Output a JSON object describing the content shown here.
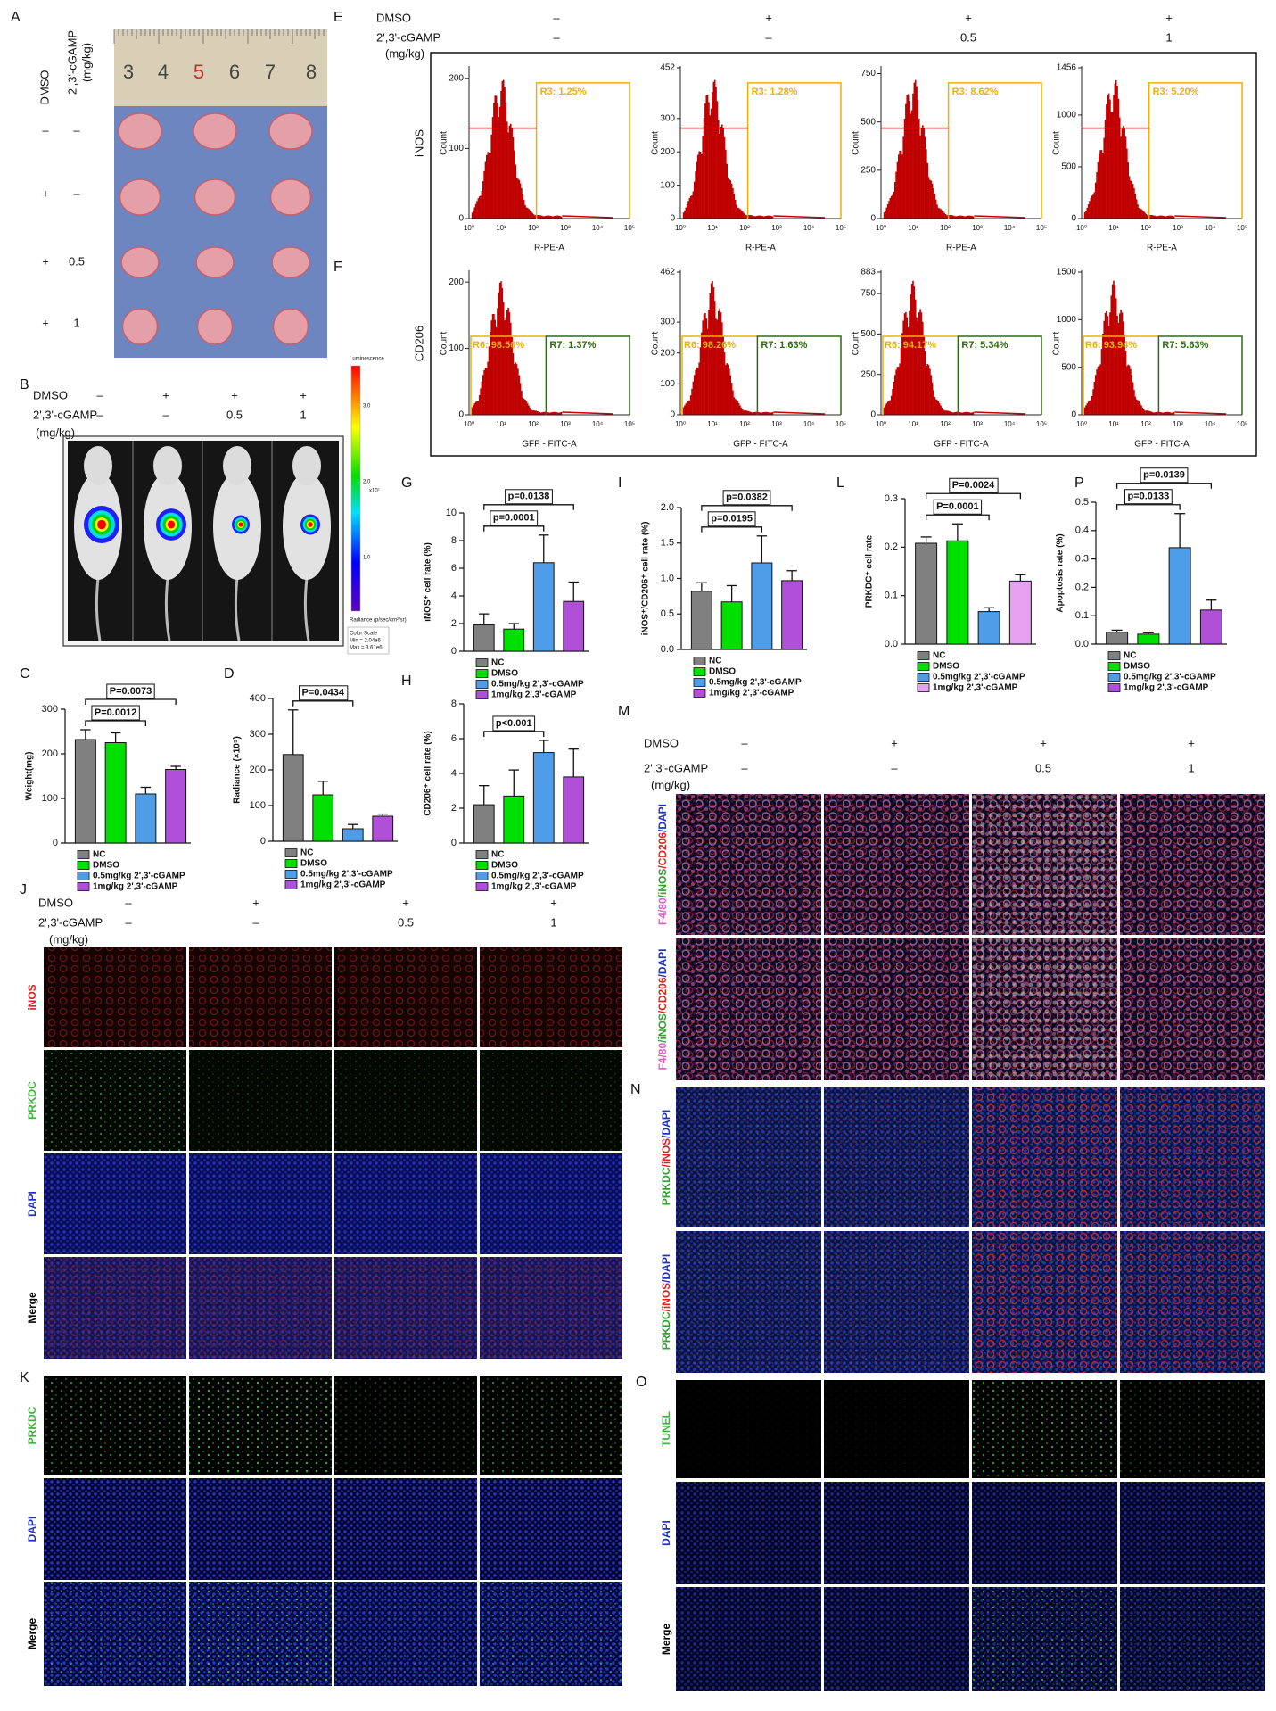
{
  "panel_letters": [
    "A",
    "B",
    "C",
    "D",
    "E",
    "F",
    "G",
    "H",
    "I",
    "J",
    "K",
    "L",
    "M",
    "N",
    "O",
    "P"
  ],
  "conditions": {
    "dmso_label": "DMSO",
    "cgamp_label": "2',3'-cGAMP",
    "cgamp_unit": "(mg/kg)",
    "dmso": [
      "–",
      "+",
      "+",
      "+"
    ],
    "cgamp": [
      "–",
      "–",
      "0.5",
      "1"
    ]
  },
  "panel_a": {
    "ruler": [
      3,
      4,
      5,
      6,
      7,
      8
    ]
  },
  "panel_b": {
    "color_scale": {
      "title": "Luminescence",
      "ticks": [
        "3.0",
        "2.0",
        "1.0"
      ],
      "exponent": "x10⁷",
      "unit": "Radiance (p/sec/cm²/sr)",
      "notes": [
        "Color Scale",
        "Min = 2.04e6",
        "Max = 3.61e6"
      ]
    }
  },
  "flow": {
    "y_label": "Count",
    "xticks": [
      "10⁰",
      "10¹",
      "10²",
      "10³",
      "10⁴",
      "10⁵"
    ],
    "rows": [
      {
        "label": "iNOS",
        "x_label": "R-PE-A",
        "panels": [
          {
            "ylim": [
              0,
              215
            ],
            "yticks": [
              0,
              100,
              200
            ],
            "gates": [
              "R3: 1.25%"
            ]
          },
          {
            "ylim": [
              0,
              452
            ],
            "yticks": [
              0,
              100,
              200,
              300,
              452
            ],
            "gates": [
              "R3: 1.28%"
            ]
          },
          {
            "ylim": [
              0,
              780
            ],
            "yticks": [
              0,
              250,
              500,
              750
            ],
            "gates": [
              "R3: 8.62%"
            ]
          },
          {
            "ylim": [
              0,
              1456
            ],
            "yticks": [
              0,
              500,
              1000,
              1456
            ],
            "gates": [
              "R3: 5.20%"
            ]
          }
        ]
      },
      {
        "label": "CD206",
        "x_label": "GFP - FITC-A",
        "panels": [
          {
            "ylim": [
              0,
              215
            ],
            "yticks": [
              0,
              100,
              200
            ],
            "gates": [
              "R6: 98.56%",
              "R7: 1.37%"
            ]
          },
          {
            "ylim": [
              0,
              462
            ],
            "yticks": [
              0,
              100,
              200,
              300,
              462
            ],
            "gates": [
              "R6: 98.26%",
              "R7: 1.63%"
            ]
          },
          {
            "ylim": [
              0,
              883
            ],
            "yticks": [
              0,
              250,
              500,
              750,
              883
            ],
            "gates": [
              "R6: 94.17%",
              "R7: 5.34%"
            ]
          },
          {
            "ylim": [
              0,
              1500
            ],
            "yticks": [
              0,
              500,
              1000,
              1500
            ],
            "gates": [
              "R6: 93.94%",
              "R7: 5.63%"
            ]
          }
        ]
      }
    ]
  },
  "chart_data": [
    {
      "type": "bar",
      "y_label": "Weight(mg)",
      "categories": [
        "NC",
        "DMSO",
        "0.5mg/kg 2',3'-cGAMP",
        "1mg/kg 2',3'-cGAMP"
      ],
      "values": [
        232,
        225,
        110,
        165
      ],
      "errors": [
        22,
        22,
        15,
        7
      ],
      "colors": [
        "#808080",
        "#00e000",
        "#4f9de8",
        "#b04fd8"
      ],
      "ylim": [
        0,
        300
      ],
      "yticks": [
        0,
        100,
        200,
        300
      ],
      "comparisons": [
        {
          "text": "P=0.0012",
          "from": 0,
          "to": 2
        },
        {
          "text": "P=0.0073",
          "from": 0,
          "to": 3
        }
      ]
    },
    {
      "type": "bar",
      "y_label": "Radiance (×10⁵)",
      "categories": [
        "NC",
        "DMSO",
        "0.5mg/kg 2',3'-cGAMP",
        "1mg/kg 2',3'-cGAMP"
      ],
      "values": [
        243,
        130,
        35,
        70
      ],
      "errors": [
        125,
        38,
        12,
        6
      ],
      "colors": [
        "#808080",
        "#00e000",
        "#4f9de8",
        "#b04fd8"
      ],
      "ylim": [
        0,
        400
      ],
      "yticks": [
        0,
        100,
        200,
        300,
        400
      ],
      "comparisons": [
        {
          "text": "P=0.0434",
          "from": 0,
          "to": 2
        }
      ]
    },
    {
      "type": "bar",
      "y_label": "iNOS⁺ cell rate (%)",
      "categories": [
        "NC",
        "DMSO",
        "0.5mg/kg 2',3'-cGAMP",
        "1mg/kg 2',3'-cGAMP"
      ],
      "values": [
        1.9,
        1.6,
        6.4,
        3.6
      ],
      "errors": [
        0.8,
        0.4,
        2.0,
        1.4
      ],
      "colors": [
        "#808080",
        "#00e000",
        "#4f9de8",
        "#b04fd8"
      ],
      "ylim": [
        0,
        10
      ],
      "yticks": [
        0,
        2,
        4,
        6,
        8,
        10
      ],
      "comparisons": [
        {
          "text": "p=0.0001",
          "from": 0,
          "to": 2
        },
        {
          "text": "p=0.0138",
          "from": 0,
          "to": 3
        }
      ]
    },
    {
      "type": "bar",
      "y_label": "CD206⁺ cell rate (%)",
      "categories": [
        "NC",
        "DMSO",
        "0.5mg/kg 2',3'-cGAMP",
        "1mg/kg 2',3'-cGAMP"
      ],
      "values": [
        2.2,
        2.7,
        5.2,
        3.8
      ],
      "errors": [
        1.1,
        1.5,
        0.7,
        1.6
      ],
      "colors": [
        "#808080",
        "#00e000",
        "#4f9de8",
        "#b04fd8"
      ],
      "ylim": [
        0,
        8
      ],
      "yticks": [
        0,
        2,
        4,
        6,
        8
      ],
      "comparisons": [
        {
          "text": "p<0.001",
          "from": 0,
          "to": 2
        }
      ]
    },
    {
      "type": "bar",
      "y_label": "iNOS⁺/CD206⁺ cell rate (%)",
      "categories": [
        "NC",
        "DMSO",
        "0.5mg/kg 2',3'-cGAMP",
        "1mg/kg 2',3'-cGAMP"
      ],
      "values": [
        0.82,
        0.67,
        1.22,
        0.97
      ],
      "errors": [
        0.12,
        0.23,
        0.38,
        0.14
      ],
      "colors": [
        "#808080",
        "#00e000",
        "#4f9de8",
        "#b04fd8"
      ],
      "ylim": [
        0,
        2
      ],
      "yticks": [
        {
          "value": 0,
          "label": "0.0"
        },
        0.5,
        {
          "value": 1,
          "label": "1.0"
        },
        1.5,
        {
          "value": 2,
          "label": "2.0"
        }
      ],
      "comparisons": [
        {
          "text": "p=0.0195",
          "from": 0,
          "to": 2
        },
        {
          "text": "p=0.0382",
          "from": 0,
          "to": 3
        }
      ]
    },
    {
      "type": "bar",
      "y_label": "PRKDC⁺ cell rate",
      "categories": [
        "NC",
        "DMSO",
        "0.5mg/kg 2',3'-cGAMP",
        "1mg/kg 2',3'-cGAMP"
      ],
      "values": [
        0.208,
        0.213,
        0.067,
        0.13
      ],
      "errors": [
        0.013,
        0.035,
        0.008,
        0.013
      ],
      "colors": [
        "#808080",
        "#00e000",
        "#4f9de8",
        "#e8a0f0"
      ],
      "ylim": [
        0,
        0.3
      ],
      "yticks": [
        {
          "value": 0,
          "label": "0.0"
        },
        0.1,
        0.2,
        0.3
      ],
      "comparisons": [
        {
          "text": "P=0.0001",
          "from": 0,
          "to": 2
        },
        {
          "text": "P=0.0024",
          "from": 0,
          "to": 3
        }
      ]
    },
    {
      "type": "bar",
      "y_label": "Apoptosis rate (%)",
      "categories": [
        "NC",
        "DMSO",
        "0.5mg/kg 2',3'-cGAMP",
        "1mg/kg 2',3'-cGAMP"
      ],
      "values": [
        0.042,
        0.035,
        0.34,
        0.12
      ],
      "errors": [
        0.007,
        0.005,
        0.12,
        0.035
      ],
      "colors": [
        "#808080",
        "#00e000",
        "#4f9de8",
        "#b04fd8"
      ],
      "ylim": [
        0,
        0.5
      ],
      "yticks": [
        {
          "value": 0,
          "label": "0.0"
        },
        0.1,
        0.2,
        0.3,
        0.4,
        0.5
      ],
      "comparisons": [
        {
          "text": "p=0.0133",
          "from": 0,
          "to": 2
        },
        {
          "text": "p=0.0139",
          "from": 0,
          "to": 3
        }
      ]
    }
  ],
  "microscopy": {
    "J": {
      "rows": [
        {
          "label": "iNOS",
          "color": "#e02020"
        },
        {
          "label": "PRKDC",
          "color": "#3cb43c"
        },
        {
          "label": "DAPI",
          "color": "#2030c0"
        },
        {
          "label": "Merge",
          "color": "#000000"
        }
      ]
    },
    "K": {
      "rows": [
        {
          "label": "PRKDC",
          "color": "#3cb43c"
        },
        {
          "label": "DAPI",
          "color": "#2030c0"
        },
        {
          "label": "Merge",
          "color": "#000000"
        }
      ]
    },
    "M": {
      "rows": [
        {
          "parts": [
            {
              "text": "F4/80",
              "color": "#e060c0"
            },
            {
              "text": "/iNOS",
              "color": "#30a030"
            },
            {
              "text": "/CD206",
              "color": "#e02020"
            },
            {
              "text": "/DAPI",
              "color": "#2030c0"
            }
          ]
        },
        {
          "parts": [
            {
              "text": "F4/80",
              "color": "#e060c0"
            },
            {
              "text": "/iNOS",
              "color": "#30a030"
            },
            {
              "text": "/CD206",
              "color": "#e02020"
            },
            {
              "text": "/DAPI",
              "color": "#2030c0"
            }
          ]
        }
      ]
    },
    "N": {
      "rows": [
        {
          "parts": [
            {
              "text": "PRKDC",
              "color": "#30a030"
            },
            {
              "text": "/iNOS",
              "color": "#e02020"
            },
            {
              "text": "/DAPI",
              "color": "#2030c0"
            }
          ]
        },
        {
          "parts": [
            {
              "text": "PRKDC",
              "color": "#30a030"
            },
            {
              "text": "/iNOS",
              "color": "#e02020"
            },
            {
              "text": "/DAPI",
              "color": "#2030c0"
            }
          ]
        }
      ]
    },
    "O": {
      "rows": [
        {
          "label": "TUNEL",
          "color": "#3cb43c"
        },
        {
          "label": "DAPI",
          "color": "#2030c0"
        },
        {
          "label": "Merge",
          "color": "#000000"
        }
      ]
    }
  }
}
